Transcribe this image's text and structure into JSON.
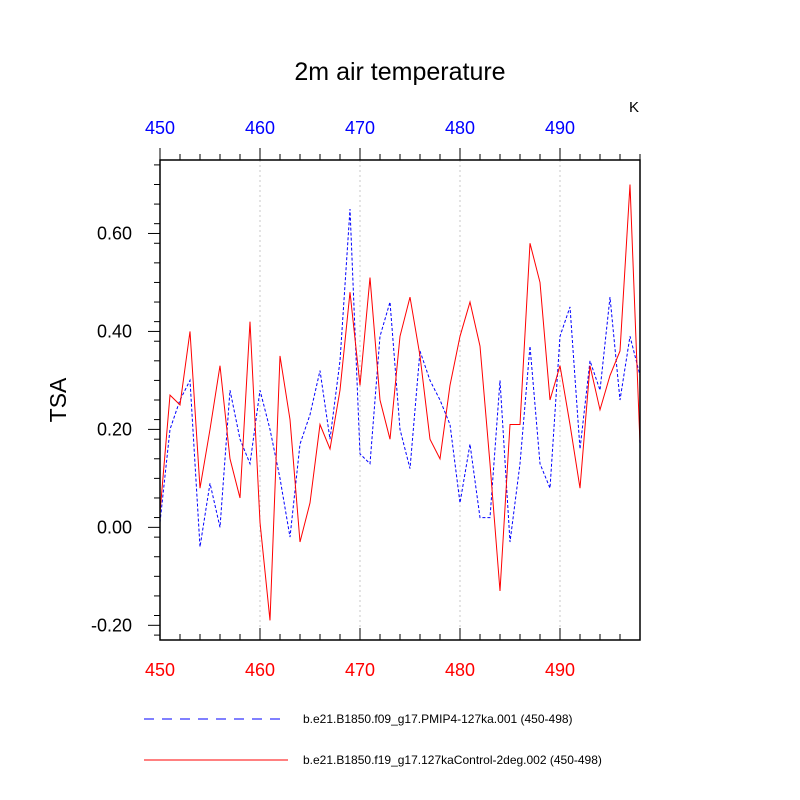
{
  "chart_data": {
    "type": "line",
    "title": "2m air temperature",
    "ylabel": "TSA",
    "units": "K",
    "xlim": [
      450,
      498
    ],
    "ylim": [
      -0.23,
      0.75
    ],
    "x_ticks_bottom": [
      "450",
      "460",
      "470",
      "480",
      "490"
    ],
    "x_ticks_top": [
      "450",
      "460",
      "470",
      "480",
      "490"
    ],
    "y_ticks": [
      "-0.20",
      "0.00",
      "0.20",
      "0.40",
      "0.60"
    ],
    "y_tick_values": [
      -0.2,
      0.0,
      0.2,
      0.4,
      0.6
    ],
    "x_tick_values": [
      450,
      460,
      470,
      480,
      490
    ],
    "grid_x": true,
    "bottom_axis_color": "#ff0000",
    "top_axis_color": "#0000ff",
    "x": [
      450,
      451,
      452,
      453,
      454,
      455,
      456,
      457,
      458,
      459,
      460,
      461,
      462,
      463,
      464,
      465,
      466,
      467,
      468,
      469,
      470,
      471,
      472,
      473,
      474,
      475,
      476,
      477,
      478,
      479,
      480,
      481,
      482,
      483,
      484,
      485,
      486,
      487,
      488,
      489,
      490,
      491,
      492,
      493,
      494,
      495,
      496,
      497,
      498
    ],
    "series": [
      {
        "name": "b.e21.B1850.f09_g17.PMIP4-127ka.001 (450-498)",
        "color": "#0000ff",
        "style": "dashed",
        "values": [
          0.01,
          0.2,
          0.26,
          0.3,
          -0.04,
          0.09,
          0.0,
          0.28,
          0.18,
          0.13,
          0.28,
          0.2,
          0.1,
          -0.02,
          0.17,
          0.23,
          0.32,
          0.18,
          0.34,
          0.65,
          0.15,
          0.13,
          0.39,
          0.46,
          0.2,
          0.12,
          0.36,
          0.3,
          0.26,
          0.21,
          0.05,
          0.17,
          0.02,
          0.02,
          0.3,
          -0.03,
          0.13,
          0.37,
          0.13,
          0.08,
          0.39,
          0.45,
          0.16,
          0.34,
          0.28,
          0.47,
          0.26,
          0.39,
          0.31
        ]
      },
      {
        "name": "b.e21.B1850.f19_g17.127kaControl-2deg.002 (450-498)",
        "color": "#ff0000",
        "style": "solid",
        "values": [
          0.03,
          0.27,
          0.25,
          0.4,
          0.08,
          0.2,
          0.33,
          0.14,
          0.06,
          0.42,
          0.01,
          -0.19,
          0.35,
          0.22,
          -0.03,
          0.05,
          0.21,
          0.16,
          0.28,
          0.48,
          0.29,
          0.51,
          0.26,
          0.18,
          0.39,
          0.47,
          0.35,
          0.18,
          0.14,
          0.29,
          0.39,
          0.46,
          0.37,
          0.13,
          -0.13,
          0.21,
          0.21,
          0.58,
          0.5,
          0.26,
          0.33,
          0.21,
          0.08,
          0.33,
          0.24,
          0.31,
          0.36,
          0.7,
          0.17
        ]
      }
    ]
  }
}
